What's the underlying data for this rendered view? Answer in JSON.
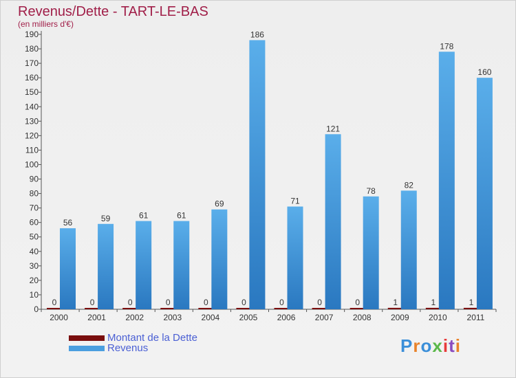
{
  "title": "Revenus/Dette - TART-LE-BAS",
  "subtitle": "(en milliers d'€)",
  "legend": {
    "debt_label": "Montant de la Dette",
    "revenue_label": "Revenus"
  },
  "logo": {
    "text": "Proxiti",
    "colors": [
      "#3b8fd9",
      "#e8822a",
      "#3b8fd9",
      "#5bb84a",
      "#e83a3a",
      "#8a4bbf",
      "#e8822a"
    ]
  },
  "colors": {
    "debt": "#7a0e0e",
    "revenue": "#4b9fe0",
    "revenue_dark": "#2a78c0",
    "title": "#a01e48",
    "legend_text": "#4a5fd4"
  },
  "chart_data": {
    "type": "bar",
    "title": "Revenus/Dette - TART-LE-BAS",
    "subtitle": "(en milliers d'€)",
    "categories": [
      "2000",
      "2001",
      "2002",
      "2003",
      "2004",
      "2005",
      "2006",
      "2007",
      "2008",
      "2009",
      "2010",
      "2011"
    ],
    "series": [
      {
        "name": "Montant de la Dette",
        "values": [
          0,
          0,
          0,
          0,
          0,
          0,
          0,
          0,
          0,
          1,
          1,
          1
        ]
      },
      {
        "name": "Revenus",
        "values": [
          56,
          59,
          61,
          61,
          69,
          186,
          71,
          121,
          78,
          82,
          178,
          160
        ]
      }
    ],
    "ylim": [
      0,
      190
    ],
    "yticks": [
      0,
      10,
      20,
      30,
      40,
      50,
      60,
      70,
      80,
      90,
      100,
      110,
      120,
      130,
      140,
      150,
      160,
      170,
      180,
      190
    ],
    "grid": false,
    "legend_position": "bottom-left"
  }
}
